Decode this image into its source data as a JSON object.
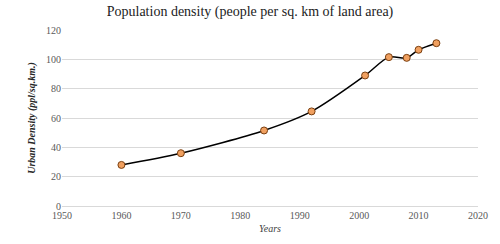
{
  "chart_data": {
    "type": "line",
    "title": "Population density (people per sq. km of land area)",
    "x_label": "Years",
    "y_label": "Urban Density (ppl/sq.km.)",
    "x": [
      1960,
      1970,
      1984,
      1992,
      2001,
      2005,
      2008,
      2010,
      2013
    ],
    "values": [
      28,
      36,
      51.5,
      64.5,
      89,
      101.5,
      101,
      106.5,
      111
    ],
    "color": "#f0a060",
    "marker": "circle",
    "line_style": "smooth",
    "xlim": [
      1950,
      2020
    ],
    "xticks": [
      1950,
      1960,
      1970,
      1980,
      1990,
      2000,
      2010,
      2020
    ],
    "ylim": [
      0,
      120
    ],
    "yticks": [
      0,
      20,
      40,
      60,
      80,
      100,
      120
    ],
    "grid": true
  }
}
